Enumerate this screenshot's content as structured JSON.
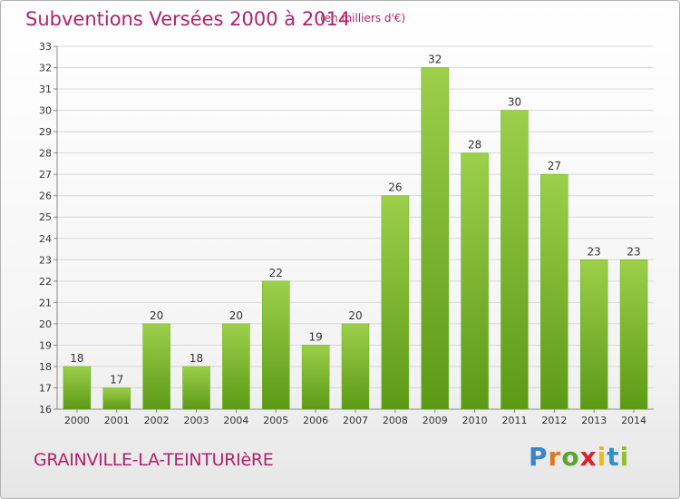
{
  "title": "Subventions Versées 2000 à 2014",
  "unit_note": "(en milliers d'€)",
  "commune": "GRAINVILLE-LA-TEINTURIèRE",
  "logo": {
    "letters": [
      "P",
      "r",
      "o",
      "x",
      "i",
      "t",
      "i"
    ],
    "colors": [
      "#3b86c8",
      "#e07a1a",
      "#5aa52c",
      "#d9242b",
      "#f0b81a",
      "#2f8fd0",
      "#8dbf2e"
    ]
  },
  "colors": {
    "title": "#b0226b",
    "bar_top": "#9ccf4a",
    "bar_bottom": "#5c9a16",
    "grid": "#d8d8d8",
    "axis_text": "#333333"
  },
  "chart_data": {
    "type": "bar",
    "categories": [
      "2000",
      "2001",
      "2002",
      "2003",
      "2004",
      "2005",
      "2006",
      "2007",
      "2008",
      "2009",
      "2010",
      "2011",
      "2012",
      "2013",
      "2014"
    ],
    "values": [
      18,
      17,
      20,
      18,
      20,
      22,
      19,
      20,
      26,
      32,
      28,
      30,
      27,
      23,
      23
    ],
    "ylim": [
      16,
      33
    ],
    "yticks": [
      16,
      17,
      18,
      19,
      20,
      21,
      22,
      23,
      24,
      25,
      26,
      27,
      28,
      29,
      30,
      31,
      32,
      33
    ],
    "grid": true,
    "data_labels": true
  }
}
